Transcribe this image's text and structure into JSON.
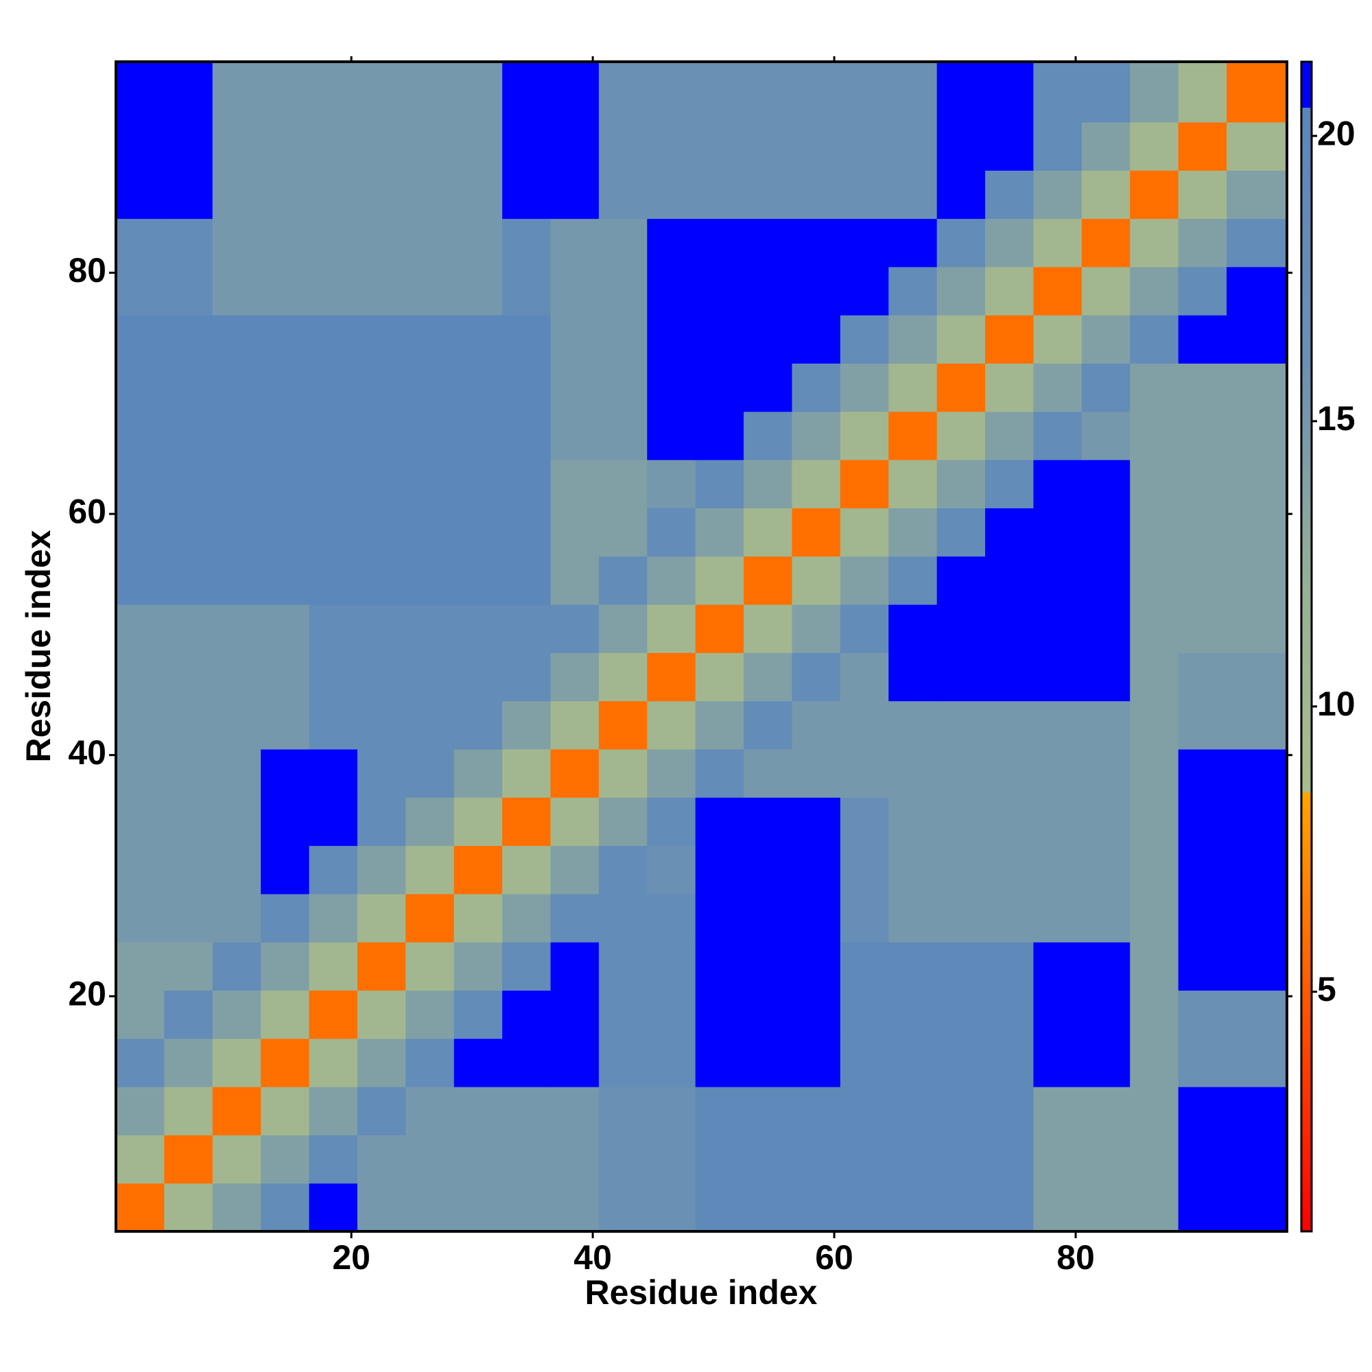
{
  "chart_data": {
    "type": "heatmap",
    "xlabel": "Residue index",
    "ylabel": "Residue index",
    "xlim": [
      0.5,
      97.5
    ],
    "ylim": [
      0.5,
      97.5
    ],
    "xticks": [
      20,
      40,
      60,
      80
    ],
    "yticks": [
      20,
      40,
      60,
      80
    ],
    "xbins": [
      0.5,
      4.5,
      8.5,
      12.5,
      16.5,
      20.5,
      24.5,
      28.5,
      32.5,
      36.5,
      40.5,
      44.5,
      48.5,
      52.5,
      56.5,
      60.5,
      64.5,
      68.5,
      72.5,
      76.5,
      80.5,
      84.5,
      88.5,
      92.5,
      97.5
    ],
    "ybins": [
      0.5,
      4.5,
      8.5,
      12.5,
      16.5,
      20.5,
      24.5,
      28.5,
      32.5,
      36.5,
      40.5,
      44.5,
      48.5,
      52.5,
      56.5,
      60.5,
      64.5,
      68.5,
      72.5,
      76.5,
      80.5,
      84.5,
      88.5,
      92.5,
      97.5
    ],
    "z": [
      [
        6,
        10,
        14,
        18,
        21,
        15,
        15,
        15,
        15,
        15,
        16,
        16,
        19,
        19,
        19,
        19,
        19,
        19,
        19,
        14,
        14,
        14,
        21,
        21
      ],
      [
        10,
        6,
        10,
        14,
        18,
        15,
        15,
        15,
        15,
        15,
        16,
        16,
        19,
        19,
        19,
        19,
        19,
        19,
        19,
        14,
        14,
        14,
        21,
        21
      ],
      [
        14,
        10,
        6,
        10,
        14,
        18,
        15,
        15,
        15,
        15,
        16,
        16,
        19,
        19,
        19,
        19,
        19,
        19,
        19,
        14,
        14,
        14,
        21,
        21
      ],
      [
        18,
        14,
        10,
        6,
        10,
        14,
        18,
        21,
        21,
        21,
        18,
        18,
        21,
        21,
        21,
        19,
        19,
        19,
        19,
        21,
        21,
        14,
        16,
        16
      ],
      [
        14,
        18,
        14,
        10,
        6,
        10,
        14,
        18,
        21,
        21,
        18,
        18,
        21,
        21,
        21,
        19,
        19,
        19,
        19,
        21,
        21,
        14,
        16,
        16
      ],
      [
        14,
        14,
        18,
        14,
        10,
        6,
        10,
        14,
        18,
        21,
        18,
        18,
        21,
        21,
        21,
        19,
        19,
        19,
        19,
        21,
        21,
        14,
        21,
        21
      ],
      [
        15,
        15,
        15,
        18,
        14,
        10,
        6,
        10,
        14,
        18,
        18,
        18,
        21,
        21,
        21,
        17,
        15,
        15,
        15,
        15,
        15,
        14,
        21,
        21
      ],
      [
        15,
        15,
        15,
        21,
        18,
        14,
        10,
        6,
        10,
        14,
        18,
        16,
        21,
        21,
        21,
        17,
        15,
        15,
        15,
        15,
        15,
        14,
        21,
        21
      ],
      [
        15,
        15,
        15,
        21,
        21,
        18,
        14,
        10,
        6,
        10,
        14,
        18,
        21,
        21,
        21,
        17,
        15,
        15,
        15,
        15,
        15,
        14,
        21,
        21
      ],
      [
        15,
        15,
        15,
        21,
        21,
        18,
        18,
        14,
        10,
        6,
        10,
        14,
        18,
        15,
        15,
        15,
        15,
        15,
        15,
        15,
        15,
        14,
        21,
        21
      ],
      [
        15,
        15,
        15,
        15,
        18,
        18,
        18,
        18,
        14,
        10,
        6,
        10,
        14,
        18,
        15,
        15,
        15,
        15,
        15,
        15,
        15,
        14,
        15,
        15
      ],
      [
        15,
        15,
        15,
        15,
        18,
        18,
        18,
        18,
        18,
        14,
        10,
        6,
        10,
        14,
        18,
        15,
        21,
        21,
        21,
        21,
        21,
        14,
        15,
        15
      ],
      [
        15,
        15,
        15,
        15,
        18,
        18,
        18,
        18,
        18,
        18,
        14,
        10,
        6,
        10,
        14,
        18,
        21,
        21,
        21,
        21,
        21,
        14,
        14,
        14
      ],
      [
        20,
        20,
        20,
        20,
        20,
        20,
        20,
        20,
        20,
        14,
        18,
        14,
        10,
        6,
        10,
        14,
        18,
        21,
        21,
        21,
        21,
        14,
        14,
        14
      ],
      [
        20,
        20,
        20,
        20,
        20,
        20,
        20,
        20,
        20,
        14,
        14,
        18,
        14,
        10,
        6,
        10,
        14,
        18,
        21,
        21,
        21,
        14,
        14,
        14
      ],
      [
        20,
        20,
        20,
        20,
        20,
        20,
        20,
        20,
        20,
        14,
        14,
        15,
        18,
        14,
        10,
        6,
        10,
        14,
        18,
        21,
        21,
        14,
        14,
        14
      ],
      [
        20,
        20,
        20,
        20,
        20,
        20,
        20,
        20,
        20,
        15,
        15,
        21,
        21,
        18,
        14,
        10,
        6,
        10,
        14,
        18,
        15,
        14,
        14,
        14
      ],
      [
        20,
        20,
        20,
        20,
        20,
        20,
        20,
        20,
        20,
        15,
        15,
        21,
        21,
        21,
        18,
        14,
        10,
        6,
        10,
        14,
        18,
        14,
        14,
        14
      ],
      [
        20,
        20,
        20,
        20,
        20,
        20,
        20,
        20,
        20,
        15,
        15,
        21,
        21,
        21,
        21,
        18,
        14,
        10,
        6,
        10,
        14,
        18,
        21,
        21
      ],
      [
        18,
        18,
        15,
        15,
        15,
        15,
        15,
        15,
        18,
        15,
        15,
        21,
        21,
        21,
        21,
        21,
        18,
        14,
        10,
        6,
        10,
        14,
        18,
        21
      ],
      [
        18,
        18,
        15,
        15,
        15,
        15,
        15,
        15,
        18,
        15,
        15,
        21,
        21,
        21,
        21,
        21,
        21,
        18,
        14,
        10,
        6,
        10,
        14,
        18
      ],
      [
        21,
        21,
        15,
        15,
        15,
        15,
        15,
        15,
        21,
        21,
        16,
        16,
        16,
        16,
        16,
        16,
        16,
        21,
        18,
        14,
        10,
        6,
        10,
        14
      ],
      [
        21,
        21,
        15,
        15,
        15,
        15,
        15,
        15,
        21,
        21,
        16,
        16,
        16,
        16,
        16,
        16,
        16,
        21,
        21,
        18,
        14,
        10,
        6,
        10
      ],
      [
        21,
        21,
        15,
        15,
        15,
        15,
        15,
        15,
        21,
        21,
        16,
        16,
        16,
        16,
        16,
        16,
        16,
        21,
        21,
        18,
        18,
        14,
        10,
        6
      ]
    ],
    "clim": [
      0.8,
      21.3
    ],
    "cticks": [
      5,
      10,
      15,
      20
    ],
    "colorscale": [
      [
        0.8,
        "#ff0000"
      ],
      [
        8.5,
        "#ffa500"
      ],
      [
        8.5,
        "#a9bd8a"
      ],
      [
        12,
        "#98b096"
      ],
      [
        16,
        "#6a90b4"
      ],
      [
        20.5,
        "#5a86bc"
      ],
      [
        20.5,
        "#0000ff"
      ],
      [
        21.3,
        "#0000ff"
      ]
    ]
  }
}
